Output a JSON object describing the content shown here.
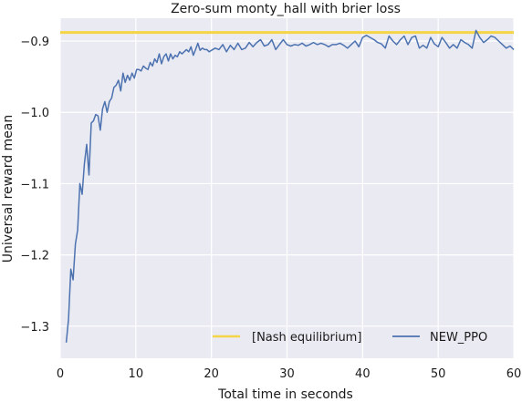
{
  "chart_data": {
    "type": "line",
    "title": "Zero-sum monty_hall with brier loss",
    "xlabel": "Total time in seconds",
    "ylabel": "Universal reward mean",
    "xlim": [
      0,
      60
    ],
    "ylim": [
      -1.345,
      -0.868
    ],
    "xticks": [
      0,
      10,
      20,
      30,
      40,
      50,
      60
    ],
    "xtick_labels": [
      "0",
      "10",
      "20",
      "30",
      "40",
      "50",
      "60"
    ],
    "yticks": [
      -1.3,
      -1.2,
      -1.1,
      -1.0,
      -0.9
    ],
    "ytick_labels": [
      "−1.3",
      "−1.2",
      "−1.1",
      "−1.0",
      "−0.9"
    ],
    "grid": true,
    "legend_position": "bottom-right",
    "background": "#eaeaf2",
    "series": [
      {
        "name": "[Nash equilibrium]",
        "color": "#f5d547",
        "line_width": 3,
        "x": [
          0,
          60
        ],
        "y": [
          -0.888,
          -0.888
        ]
      },
      {
        "name": "NEW_PPO",
        "color": "#4c72b0",
        "line_width": 1.5,
        "x": [
          0.8,
          1.1,
          1.4,
          1.7,
          2.0,
          2.3,
          2.6,
          2.9,
          3.2,
          3.5,
          3.8,
          4.1,
          4.4,
          4.7,
          5.0,
          5.3,
          5.6,
          5.9,
          6.2,
          6.5,
          6.8,
          7.1,
          7.4,
          7.7,
          8.0,
          8.3,
          8.6,
          8.9,
          9.2,
          9.5,
          9.8,
          10.1,
          10.4,
          10.7,
          11.0,
          11.3,
          11.6,
          11.9,
          12.2,
          12.5,
          12.8,
          13.1,
          13.4,
          13.7,
          14.0,
          14.3,
          14.6,
          14.9,
          15.2,
          15.5,
          15.8,
          16.1,
          16.4,
          16.7,
          17.0,
          17.3,
          17.6,
          17.9,
          18.2,
          18.5,
          18.8,
          19.1,
          19.4,
          19.7,
          20.0,
          20.5,
          21.0,
          21.5,
          22.0,
          22.5,
          23.0,
          23.5,
          24.0,
          24.5,
          25.0,
          25.5,
          26.0,
          26.5,
          27.0,
          27.5,
          28.0,
          28.5,
          29.0,
          29.5,
          30.0,
          30.5,
          31.0,
          31.5,
          32.0,
          32.5,
          33.0,
          33.5,
          34.0,
          34.5,
          35.0,
          35.5,
          36.0,
          36.5,
          37.0,
          37.5,
          38.0,
          38.5,
          39.0,
          39.5,
          40.0,
          40.5,
          41.0,
          41.5,
          42.0,
          42.5,
          43.0,
          43.5,
          44.0,
          44.5,
          45.0,
          45.5,
          46.0,
          46.5,
          47.0,
          47.5,
          48.0,
          48.5,
          49.0,
          49.5,
          50.0,
          50.5,
          51.0,
          51.5,
          52.0,
          52.5,
          53.0,
          53.5,
          54.0,
          54.5,
          55.0,
          55.5,
          56.0,
          56.5,
          57.0,
          57.5,
          58.0,
          58.5,
          59.0,
          59.5,
          60.0
        ],
        "y": [
          -1.323,
          -1.29,
          -1.22,
          -1.235,
          -1.185,
          -1.165,
          -1.1,
          -1.115,
          -1.072,
          -1.045,
          -1.088,
          -1.015,
          -1.012,
          -1.003,
          -1.005,
          -1.025,
          -0.995,
          -0.985,
          -1.0,
          -0.985,
          -0.98,
          -0.965,
          -0.962,
          -0.955,
          -0.97,
          -0.945,
          -0.958,
          -0.948,
          -0.955,
          -0.945,
          -0.952,
          -0.94,
          -0.94,
          -0.942,
          -0.935,
          -0.938,
          -0.94,
          -0.93,
          -0.935,
          -0.925,
          -0.93,
          -0.918,
          -0.932,
          -0.922,
          -0.918,
          -0.928,
          -0.918,
          -0.925,
          -0.92,
          -0.922,
          -0.915,
          -0.918,
          -0.915,
          -0.912,
          -0.915,
          -0.908,
          -0.92,
          -0.912,
          -0.903,
          -0.913,
          -0.91,
          -0.912,
          -0.912,
          -0.915,
          -0.913,
          -0.91,
          -0.912,
          -0.905,
          -0.915,
          -0.906,
          -0.912,
          -0.903,
          -0.912,
          -0.91,
          -0.902,
          -0.908,
          -0.902,
          -0.898,
          -0.907,
          -0.905,
          -0.898,
          -0.912,
          -0.905,
          -0.898,
          -0.905,
          -0.907,
          -0.905,
          -0.906,
          -0.903,
          -0.907,
          -0.905,
          -0.902,
          -0.905,
          -0.903,
          -0.905,
          -0.908,
          -0.905,
          -0.905,
          -0.903,
          -0.906,
          -0.91,
          -0.905,
          -0.9,
          -0.908,
          -0.895,
          -0.892,
          -0.895,
          -0.898,
          -0.902,
          -0.904,
          -0.91,
          -0.893,
          -0.9,
          -0.905,
          -0.898,
          -0.893,
          -0.905,
          -0.895,
          -0.893,
          -0.91,
          -0.906,
          -0.91,
          -0.895,
          -0.904,
          -0.908,
          -0.895,
          -0.902,
          -0.91,
          -0.905,
          -0.91,
          -0.898,
          -0.902,
          -0.905,
          -0.91,
          -0.885,
          -0.895,
          -0.902,
          -0.898,
          -0.893,
          -0.895,
          -0.9,
          -0.905,
          -0.91,
          -0.907,
          -0.912
        ]
      }
    ]
  }
}
